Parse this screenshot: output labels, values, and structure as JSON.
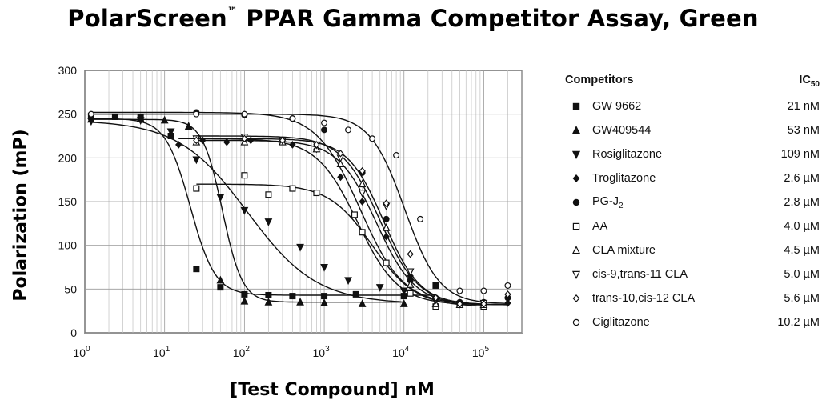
{
  "title": {
    "main": "PolarScreen",
    "tm": "™",
    "rest": " PPAR Gamma Competitor Assay, Green"
  },
  "xlabel": "[Test Compound] nM",
  "ylabel": "Polarization (mP)",
  "legend": {
    "header_left": "Competitors",
    "header_right": "IC",
    "header_sub": "50",
    "entries": [
      {
        "name": "GW 9662",
        "ic50": "21 nM",
        "marker": "square-filled"
      },
      {
        "name": "GW409544",
        "ic50": "53 nM",
        "marker": "triangle-up-filled"
      },
      {
        "name": "Rosiglitazone",
        "ic50": "109 nM",
        "marker": "triangle-down-filled"
      },
      {
        "name": "Troglitazone",
        "ic50": "2.6 µM",
        "marker": "diamond-filled"
      },
      {
        "name": "PG-J",
        "name_sub": "2",
        "ic50": "2.8 µM",
        "marker": "circle-filled"
      },
      {
        "name": "AA",
        "ic50": "4.0 µM",
        "marker": "square-open"
      },
      {
        "name": "CLA mixture",
        "ic50": "4.5 µM",
        "marker": "triangle-up-open"
      },
      {
        "name": "cis-9,trans-11 CLA",
        "ic50": "5.0 µM",
        "marker": "triangle-down-open"
      },
      {
        "name": "trans-10,cis-12 CLA",
        "ic50": "5.6 µM",
        "marker": "diamond-open"
      },
      {
        "name": "Ciglitazone",
        "ic50": "10.2 µM",
        "marker": "circle-open"
      }
    ]
  },
  "chart_data": {
    "type": "scatter",
    "x_scale": "log",
    "xlim": [
      1,
      300000
    ],
    "ylim": [
      0,
      300
    ],
    "y_ticks": [
      0,
      50,
      100,
      150,
      200,
      250,
      300
    ],
    "x_ticks": [
      1,
      10,
      100,
      1000,
      10000,
      100000
    ],
    "grid": true,
    "legend_position": "right",
    "series": [
      {
        "name": "GW 9662",
        "marker": "square-filled",
        "top": 245,
        "bottom": 43,
        "ic50": 21,
        "hill": 2.8,
        "points": [
          [
            1.2,
            248
          ],
          [
            2.4,
            247
          ],
          [
            5,
            246
          ],
          [
            12,
            225
          ],
          [
            25,
            73
          ],
          [
            50,
            52
          ],
          [
            100,
            44
          ],
          [
            200,
            43
          ],
          [
            400,
            42
          ],
          [
            1000,
            42
          ],
          [
            2500,
            44
          ],
          [
            10000,
            42
          ],
          [
            25000,
            54
          ]
        ]
      },
      {
        "name": "GW409544",
        "marker": "triangle-up-filled",
        "top": 244,
        "bottom": 35,
        "ic50": 53,
        "hill": 3.5,
        "points": [
          [
            1.2,
            244
          ],
          [
            5,
            245
          ],
          [
            10,
            243
          ],
          [
            20,
            236
          ],
          [
            50,
            60
          ],
          [
            100,
            36
          ],
          [
            200,
            35
          ],
          [
            500,
            35
          ],
          [
            1000,
            34
          ],
          [
            3000,
            33
          ],
          [
            10000,
            33
          ]
        ]
      },
      {
        "name": "Rosiglitazone",
        "marker": "triangle-down-filled",
        "top": 243,
        "bottom": 33,
        "ic50": 109,
        "hill": 1.0,
        "points": [
          [
            1.2,
            242
          ],
          [
            5,
            243
          ],
          [
            12,
            230
          ],
          [
            25,
            198
          ],
          [
            50,
            155
          ],
          [
            100,
            140
          ],
          [
            200,
            127
          ],
          [
            500,
            98
          ],
          [
            1000,
            75
          ],
          [
            2000,
            60
          ],
          [
            5000,
            52
          ],
          [
            10000,
            48
          ]
        ]
      },
      {
        "name": "Troglitazone",
        "marker": "diamond-filled",
        "top": 222,
        "bottom": 32,
        "ic50": 2600,
        "hill": 1.7,
        "points": [
          [
            15,
            215
          ],
          [
            30,
            220
          ],
          [
            60,
            218
          ],
          [
            120,
            220
          ],
          [
            400,
            215
          ],
          [
            800,
            210
          ],
          [
            1600,
            178
          ],
          [
            3000,
            150
          ],
          [
            6000,
            110
          ],
          [
            12000,
            65
          ],
          [
            25000,
            38
          ],
          [
            50000,
            34
          ],
          [
            100000,
            32
          ],
          [
            200000,
            34
          ]
        ]
      },
      {
        "name": "PG-J₂",
        "marker": "circle-filled",
        "top": 252,
        "bottom": 32,
        "ic50": 2800,
        "hill": 1.6,
        "points": [
          [
            1.2,
            246
          ],
          [
            2.4,
            247
          ],
          [
            25,
            252
          ],
          [
            100,
            249
          ],
          [
            400,
            245
          ],
          [
            1000,
            232
          ],
          [
            3000,
            183
          ],
          [
            6000,
            130
          ],
          [
            12000,
            60
          ],
          [
            25000,
            40
          ],
          [
            50000,
            35
          ],
          [
            100000,
            35
          ],
          [
            200000,
            40
          ]
        ]
      },
      {
        "name": "AA",
        "marker": "square-open",
        "top": 170,
        "bottom": 30,
        "ic50": 4000,
        "hill": 1.6,
        "points": [
          [
            25,
            165
          ],
          [
            100,
            180
          ],
          [
            200,
            158
          ],
          [
            400,
            165
          ],
          [
            800,
            160
          ],
          [
            2400,
            135
          ],
          [
            3000,
            115
          ],
          [
            6000,
            80
          ],
          [
            12000,
            45
          ],
          [
            25000,
            30
          ],
          [
            50000,
            32
          ],
          [
            100000,
            30
          ]
        ]
      },
      {
        "name": "CLA mixture",
        "marker": "triangle-up-open",
        "top": 220,
        "bottom": 32,
        "ic50": 4500,
        "hill": 1.8,
        "points": [
          [
            25,
            218
          ],
          [
            100,
            218
          ],
          [
            300,
            218
          ],
          [
            800,
            210
          ],
          [
            1600,
            193
          ],
          [
            3000,
            170
          ],
          [
            6000,
            120
          ],
          [
            12000,
            55
          ],
          [
            25000,
            33
          ],
          [
            50000,
            32
          ],
          [
            100000,
            32
          ]
        ]
      },
      {
        "name": "cis-9,trans-11 CLA",
        "marker": "triangle-down-open",
        "top": 225,
        "bottom": 32,
        "ic50": 5000,
        "hill": 1.8,
        "points": [
          [
            25,
            222
          ],
          [
            100,
            224
          ],
          [
            300,
            220
          ],
          [
            800,
            215
          ],
          [
            1600,
            200
          ],
          [
            3000,
            160
          ],
          [
            6000,
            145
          ],
          [
            12000,
            70
          ],
          [
            25000,
            38
          ],
          [
            50000,
            33
          ],
          [
            100000,
            34
          ]
        ]
      },
      {
        "name": "trans-10,cis-12 CLA",
        "marker": "diamond-open",
        "top": 222,
        "bottom": 32,
        "ic50": 5600,
        "hill": 1.9,
        "points": [
          [
            25,
            220
          ],
          [
            100,
            222
          ],
          [
            300,
            220
          ],
          [
            800,
            215
          ],
          [
            1600,
            205
          ],
          [
            3000,
            185
          ],
          [
            6000,
            148
          ],
          [
            12000,
            90
          ],
          [
            25000,
            40
          ],
          [
            50000,
            33
          ],
          [
            100000,
            33
          ],
          [
            200000,
            44
          ]
        ]
      },
      {
        "name": "Ciglitazone",
        "marker": "circle-open",
        "top": 250,
        "bottom": 33,
        "ic50": 10200,
        "hill": 2.0,
        "points": [
          [
            1.2,
            250
          ],
          [
            25,
            250
          ],
          [
            100,
            250
          ],
          [
            400,
            245
          ],
          [
            1000,
            240
          ],
          [
            2000,
            232
          ],
          [
            4000,
            222
          ],
          [
            8000,
            203
          ],
          [
            16000,
            130
          ],
          [
            50000,
            48
          ],
          [
            100000,
            48
          ],
          [
            200000,
            54
          ]
        ]
      }
    ]
  }
}
